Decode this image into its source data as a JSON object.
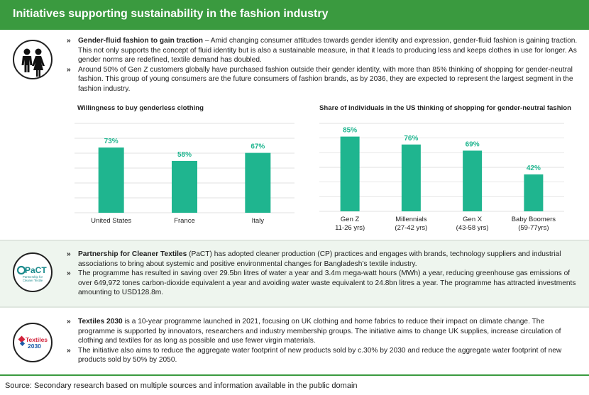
{
  "header": {
    "title": "Initiatives supporting sustainability in the fashion industry"
  },
  "section1": {
    "bullets": [
      {
        "bold": "Gender-fluid fashion to gain traction",
        "text": " – Amid changing consumer attitudes towards gender identity and expression, gender-fluid fashion is gaining traction. This not only supports the concept of fluid identity but is also a sustainable measure, in that it leads to producing less and keeps clothes in use for longer. As gender norms are redefined, textile demand has doubled."
      },
      {
        "bold": "",
        "text": "Around 50% of Gen Z customers globally have purchased fashion outside their gender identity, with more than 85% thinking of shopping for gender-neutral fashion. This group of young consumers are the future consumers of fashion brands, as by 2036, they are expected to represent the largest segment in the fashion industry."
      }
    ]
  },
  "chart_data": [
    {
      "type": "bar",
      "title": "Willingness to buy genderless clothing",
      "categories": [
        "United States",
        "France",
        "Italy"
      ],
      "values": [
        73,
        58,
        67
      ],
      "value_labels": [
        "73%",
        "58%",
        "67%"
      ],
      "ylim": [
        0,
        100
      ],
      "grid": true,
      "color": "#1fb58f"
    },
    {
      "type": "bar",
      "title": "Share of individuals in the US thinking of shopping for gender-neutral fashion",
      "categories": [
        "Gen Z",
        "Millennials",
        "Gen X",
        "Baby Boomers"
      ],
      "category_sublabels": [
        "11-26 yrs)",
        "(27-42 yrs)",
        "(43-58 yrs)",
        "(59-77yrs)"
      ],
      "values": [
        85,
        76,
        69,
        42
      ],
      "value_labels": [
        "85%",
        "76%",
        "69%",
        "42%"
      ],
      "ylim": [
        0,
        100
      ],
      "grid": true,
      "color": "#1fb58f"
    }
  ],
  "section2": {
    "logo": {
      "name": "PaCT",
      "line1": "Partnership for",
      "line2": "Cleaner Textile"
    },
    "bullets": [
      {
        "bold": "Partnership for Cleaner Textiles",
        "text": " (PaCT) has adopted cleaner production (CP) practices and engages with brands, technology suppliers and industrial associations to bring about systemic and positive environmental changes for Bangladesh’s textile industry."
      },
      {
        "bold": "",
        "text": "The programme has resulted in saving over 29.5bn litres of water a year and 3.4m mega-watt hours (MWh) a year, reducing greenhouse gas emissions of over 649,972 tones carbon-dioxide equivalent a year and avoiding water waste equivalent to 24.8bn litres a year.  The programme has attracted investments amounting to USD128.8m."
      }
    ]
  },
  "section3": {
    "logo": {
      "line1": "Textiles",
      "line2": "2030"
    },
    "bullets": [
      {
        "bold": "Textiles 2030",
        "text": " is a 10-year programme launched in 2021, focusing on UK clothing and home fabrics to reduce their impact on climate change. The programme is supported by innovators, researchers and industry membership groups. The initiative aims to change UK supplies, increase circulation of clothing and textiles for as long as possible and use fewer virgin materials."
      },
      {
        "bold": "",
        "text": "The initiative also aims to reduce the aggregate water footprint of new products sold by c.30% by 2030 and reduce the aggregate water footprint of new products sold by 50% by 2050."
      }
    ]
  },
  "footer": {
    "source": "Source: Secondary research based on multiple sources and information available in the public domain"
  },
  "colors": {
    "header_green": "#3a9a3f",
    "bar_teal": "#1fb58f",
    "pact_teal": "#1a8a8c",
    "textiles_red": "#d2233c",
    "textiles_blue": "#1b5aa8"
  },
  "icons": {
    "section1": "people-icon",
    "section2": "pact-logo",
    "section3": "textiles-2030-logo",
    "bullet": "double-chevron"
  }
}
